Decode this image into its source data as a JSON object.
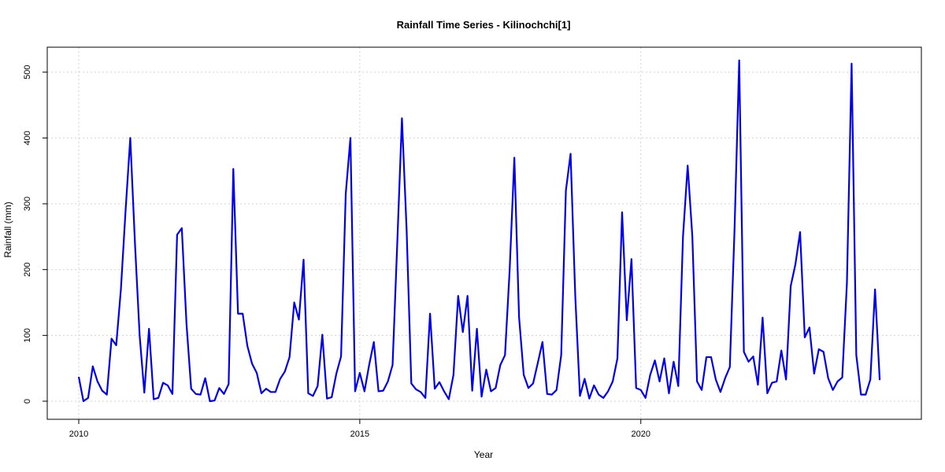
{
  "chart_data": {
    "type": "line",
    "title": "Rainfall Time Series - Kilinochchi[1]",
    "xlabel": "Year",
    "ylabel": "Rainfall (mm)",
    "x_ticks": [
      "2010",
      "2015",
      "2020"
    ],
    "y_ticks": [
      "0",
      "100",
      "200",
      "300",
      "400",
      "500"
    ],
    "ylim": [
      0,
      520
    ],
    "grid": true,
    "legend": "none",
    "colors": {
      "line": "#0000ee",
      "grid": "#d3d3d3",
      "axis": "#000000"
    },
    "series": [
      {
        "x_start": "2010-01",
        "x_step": "1 month",
        "values": [
          37,
          0,
          5,
          53,
          30,
          16,
          10,
          95,
          85,
          170,
          290,
          400,
          240,
          100,
          13,
          110,
          3,
          5,
          28,
          24,
          11,
          253,
          263,
          118,
          19,
          11,
          10,
          35,
          0,
          1,
          20,
          11,
          26,
          353,
          133,
          133,
          84,
          57,
          43,
          12,
          19,
          14,
          14,
          34,
          45,
          67,
          150,
          124,
          215,
          12,
          8,
          23,
          101,
          4,
          6,
          42,
          68,
          315,
          400,
          15,
          43,
          15,
          55,
          90,
          15,
          16,
          30,
          55,
          240,
          430,
          260,
          27,
          18,
          14,
          5,
          133,
          19,
          29,
          15,
          3,
          40,
          160,
          105,
          160,
          16,
          110,
          7,
          48,
          15,
          20,
          55,
          70,
          200,
          370,
          128,
          40,
          20,
          27,
          58,
          90,
          11,
          10,
          17,
          70,
          320,
          376,
          160,
          8,
          34,
          4,
          24,
          10,
          5,
          15,
          30,
          65,
          287,
          123,
          216,
          20,
          17,
          5,
          40,
          62,
          30,
          65,
          12,
          60,
          23,
          250,
          358,
          250,
          30,
          17,
          67,
          67,
          33,
          14,
          35,
          52,
          260,
          518,
          75,
          60,
          68,
          25,
          127,
          12,
          28,
          30,
          77,
          33,
          175,
          208,
          257,
          97,
          112,
          42,
          79,
          75,
          35,
          17,
          30,
          36,
          180,
          513,
          70,
          10,
          10,
          33,
          170,
          32
        ]
      }
    ]
  }
}
